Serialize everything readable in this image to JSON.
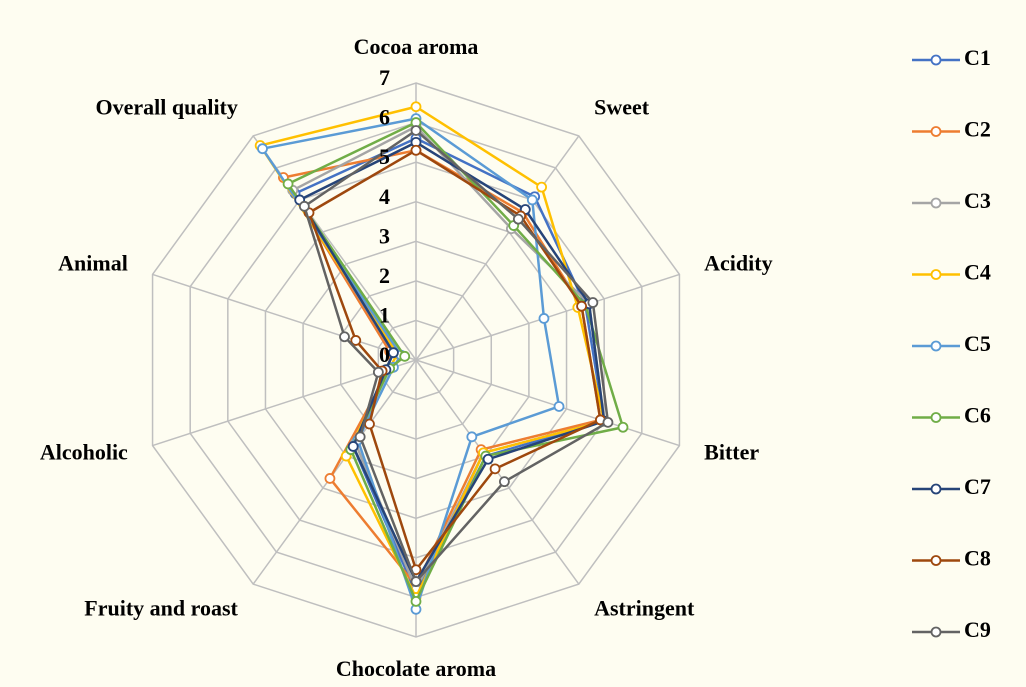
{
  "chart_data": {
    "type": "radar",
    "categories": [
      "Cocoa aroma",
      "Sweet",
      "Acidity",
      "Bitter",
      "Astringent",
      "Chocolate aroma",
      "Fruity and roast",
      "Alcoholic",
      "Animal",
      "Overall quality"
    ],
    "ylim": [
      0,
      7
    ],
    "yticks": [
      0,
      1,
      2,
      3,
      4,
      5,
      6,
      7
    ],
    "grid": true,
    "legend": "right",
    "series": [
      {
        "name": "C1",
        "color": "#4472c4",
        "values": [
          5.6,
          5.1,
          4.5,
          5.0,
          3.0,
          5.9,
          2.7,
          0.8,
          0.6,
          5.2
        ]
      },
      {
        "name": "C2",
        "color": "#ed7d31",
        "values": [
          5.3,
          4.6,
          4.4,
          4.9,
          2.8,
          5.7,
          3.7,
          0.7,
          0.7,
          5.7
        ]
      },
      {
        "name": "C3",
        "color": "#a5a5a5",
        "values": [
          5.9,
          4.1,
          4.6,
          5.0,
          2.9,
          5.8,
          2.6,
          0.8,
          0.6,
          5.3
        ]
      },
      {
        "name": "C4",
        "color": "#ffc000",
        "values": [
          6.4,
          5.4,
          4.3,
          5.0,
          2.9,
          6.0,
          3.0,
          0.7,
          0.5,
          6.7
        ]
      },
      {
        "name": "C5",
        "color": "#5b9bd5",
        "values": [
          6.1,
          5.0,
          3.4,
          3.8,
          2.4,
          6.3,
          2.5,
          0.6,
          0.4,
          6.6
        ]
      },
      {
        "name": "C6",
        "color": "#70ad47",
        "values": [
          6.0,
          4.2,
          4.5,
          5.5,
          3.0,
          6.1,
          2.8,
          0.7,
          0.3,
          5.5
        ]
      },
      {
        "name": "C7",
        "color": "#264478",
        "values": [
          5.5,
          4.7,
          4.6,
          5.0,
          3.1,
          5.6,
          2.7,
          0.8,
          0.6,
          5.0
        ]
      },
      {
        "name": "C8",
        "color": "#9e480e",
        "values": [
          5.3,
          4.5,
          4.4,
          4.9,
          3.4,
          5.3,
          2.0,
          0.9,
          1.6,
          4.6
        ]
      },
      {
        "name": "C9",
        "color": "#636363",
        "values": [
          5.8,
          4.4,
          4.7,
          5.1,
          3.8,
          5.6,
          2.4,
          1.0,
          1.9,
          4.8
        ]
      }
    ]
  }
}
